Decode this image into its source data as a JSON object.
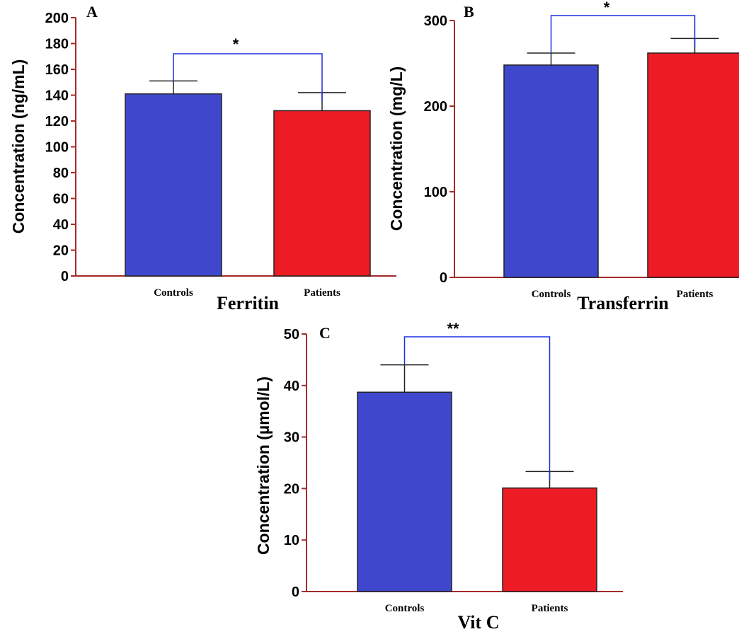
{
  "colors": {
    "controls": "#3f48cc",
    "patients": "#ed1c24",
    "axis": "#a52a2a",
    "bracket": "#1f2ee0"
  },
  "chart_data": [
    {
      "type": "bar",
      "panel": "A",
      "xlabel": "Ferritin",
      "ylabel": "Concentration (ng/mL)",
      "categories": [
        "Controls",
        "Patients"
      ],
      "values": [
        141,
        128
      ],
      "errors": [
        10,
        14
      ],
      "ylim": [
        0,
        200
      ],
      "yticks": [
        "0",
        "20",
        "40",
        "60",
        "80",
        "100",
        "120",
        "140",
        "160",
        "180",
        "200"
      ],
      "significance": "*"
    },
    {
      "type": "bar",
      "panel": "B",
      "xlabel": "Transferrin",
      "ylabel": "Concentration (mg/L)",
      "categories": [
        "Controls",
        "Patients"
      ],
      "values": [
        248,
        262
      ],
      "errors": [
        14,
        17
      ],
      "ylim": [
        0,
        300
      ],
      "yticks": [
        "0",
        "100",
        "200",
        "300"
      ],
      "significance": "*"
    },
    {
      "type": "bar",
      "panel": "C",
      "xlabel": "Vit C",
      "ylabel": "Concentration (µmol/L)",
      "categories": [
        "Controls",
        "Patients"
      ],
      "values": [
        38.7,
        20.1
      ],
      "errors": [
        5.3,
        3.2
      ],
      "ylim": [
        0,
        50
      ],
      "yticks": [
        "0",
        "10",
        "20",
        "30",
        "40",
        "50"
      ],
      "significance": "**"
    }
  ]
}
